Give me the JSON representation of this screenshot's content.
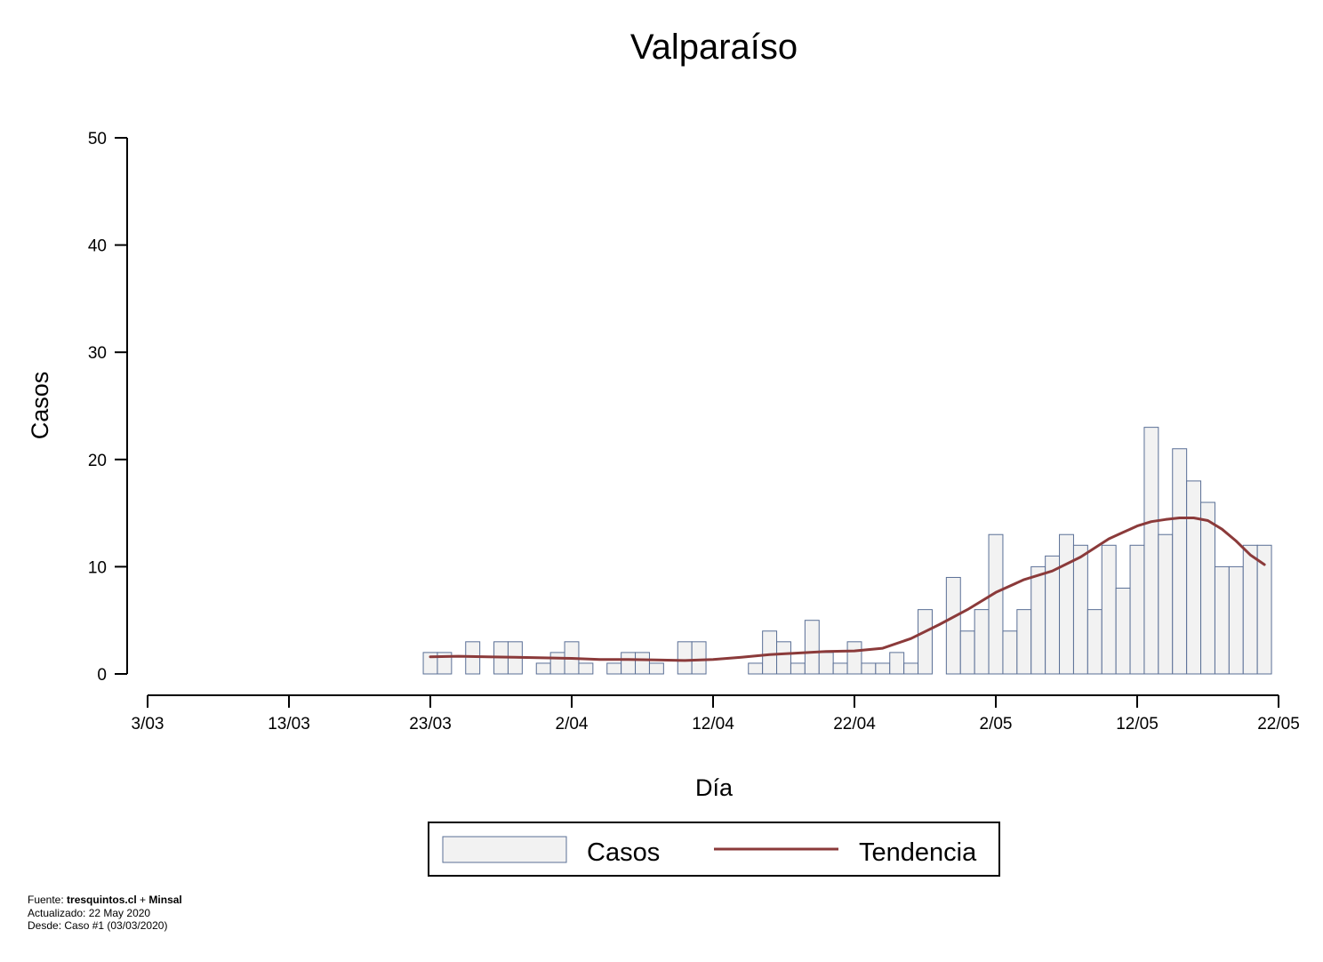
{
  "chart_data": {
    "type": "bar",
    "title": "Valparaíso",
    "xlabel": "Día",
    "ylabel": "Casos",
    "ylim": [
      0,
      50
    ],
    "yticks": [
      "0",
      "10",
      "20",
      "30",
      "40",
      "50"
    ],
    "xtick_labels": [
      "3/03",
      "13/03",
      "23/03",
      "2/04",
      "12/04",
      "22/04",
      "2/05",
      "12/05",
      "22/05"
    ],
    "x_start": "3/03",
    "grid": false,
    "legend_placement": "bottom-center",
    "colors": {
      "bar_fill": "#f2f2f2",
      "bar_stroke": "#5a6f96",
      "trend": "#8b3a3a"
    },
    "series": [
      {
        "name": "Casos",
        "type": "bar",
        "x": [
          "23/03",
          "24/03",
          "26/03",
          "28/03",
          "29/03",
          "31/03",
          "1/04",
          "2/04",
          "3/04",
          "5/04",
          "6/04",
          "7/04",
          "8/04",
          "10/04",
          "11/04",
          "15/04",
          "16/04",
          "17/04",
          "18/04",
          "19/04",
          "20/04",
          "21/04",
          "22/04",
          "23/04",
          "24/04",
          "25/04",
          "26/04",
          "27/04",
          "29/04",
          "30/04",
          "1/05",
          "2/05",
          "3/05",
          "4/05",
          "5/05",
          "6/05",
          "7/05",
          "8/05",
          "9/05",
          "10/05",
          "11/05",
          "12/05",
          "13/05",
          "14/05",
          "15/05",
          "16/05",
          "17/05",
          "18/05",
          "19/05",
          "20/05",
          "21/05"
        ],
        "values": [
          2,
          2,
          3,
          3,
          3,
          1,
          2,
          3,
          1,
          1,
          2,
          2,
          1,
          3,
          3,
          1,
          4,
          3,
          1,
          5,
          2,
          1,
          3,
          1,
          1,
          2,
          1,
          6,
          9,
          4,
          6,
          13,
          4,
          6,
          10,
          11,
          13,
          12,
          6,
          12,
          8,
          12,
          23,
          13,
          21,
          18,
          16,
          10,
          10,
          12,
          12
        ]
      },
      {
        "name": "Tendencia",
        "type": "line",
        "x": [
          "23/03",
          "25/03",
          "27/03",
          "29/03",
          "31/03",
          "2/04",
          "4/04",
          "6/04",
          "8/04",
          "10/04",
          "12/04",
          "14/04",
          "16/04",
          "18/04",
          "20/04",
          "22/04",
          "24/04",
          "26/04",
          "28/04",
          "30/04",
          "2/05",
          "4/05",
          "6/05",
          "8/05",
          "10/05",
          "11/05",
          "12/05",
          "13/05",
          "14/05",
          "15/05",
          "16/05",
          "17/05",
          "18/05",
          "19/05",
          "20/05",
          "21/05"
        ],
        "values": [
          1.6,
          1.65,
          1.6,
          1.55,
          1.5,
          1.45,
          1.35,
          1.35,
          1.3,
          1.25,
          1.35,
          1.55,
          1.8,
          1.95,
          2.1,
          2.15,
          2.4,
          3.3,
          4.6,
          6.0,
          7.6,
          8.8,
          9.6,
          10.9,
          12.6,
          13.2,
          13.8,
          14.2,
          14.4,
          14.55,
          14.55,
          14.3,
          13.5,
          12.4,
          11.1,
          10.2
        ]
      }
    ]
  },
  "legend": {
    "items": [
      "Casos",
      "Tendencia"
    ]
  },
  "footer": {
    "source_prefix": "Fuente: ",
    "source_site": "tresquintos.cl",
    "source_plus": " + ",
    "source_org": "Minsal",
    "updated": "Actualizado: 22 May 2020",
    "since": "Desde: Caso #1  (03/03/2020)"
  }
}
